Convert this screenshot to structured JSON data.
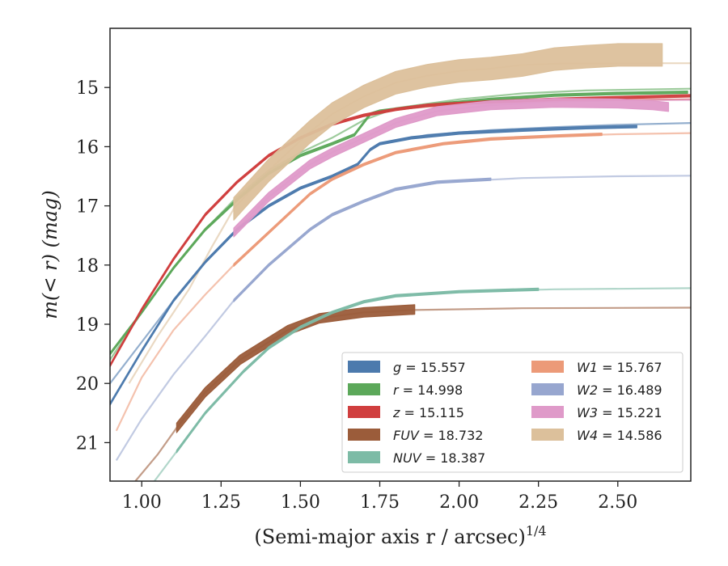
{
  "chart_data": {
    "type": "line",
    "xlabel": "(Semi-major axis r / arcsec)",
    "xlabel_power": "1/4",
    "ylabel_prefix": "m(< r) (mag)",
    "xlim": [
      0.9,
      2.73
    ],
    "ylim": [
      21.65,
      14.0
    ],
    "y_inverted": true,
    "grid": false,
    "legend_position": "lower-right",
    "xticks": [
      1.0,
      1.25,
      1.5,
      1.75,
      2.0,
      2.25,
      2.5
    ],
    "xtick_labels": [
      "1.00",
      "1.25",
      "1.50",
      "1.75",
      "2.00",
      "2.25",
      "2.50"
    ],
    "yticks": [
      15,
      16,
      17,
      18,
      19,
      20,
      21
    ],
    "ytick_labels": [
      "15",
      "16",
      "17",
      "18",
      "19",
      "20",
      "21"
    ],
    "series": [
      {
        "name": "g = 15.557",
        "label_var": "g",
        "label_val": "15.557",
        "color": "#4c7aad",
        "band": [
          [
            0.9,
            20.35
          ],
          [
            1.0,
            19.45
          ],
          [
            1.1,
            18.6
          ],
          [
            1.2,
            17.95
          ],
          [
            1.3,
            17.4
          ],
          [
            1.4,
            17.0
          ],
          [
            1.5,
            16.7
          ],
          [
            1.6,
            16.5
          ],
          [
            1.68,
            16.3
          ],
          [
            1.72,
            16.05
          ],
          [
            1.75,
            15.95
          ],
          [
            1.85,
            15.85
          ],
          [
            2.0,
            15.77
          ],
          [
            2.2,
            15.72
          ],
          [
            2.4,
            15.68
          ],
          [
            2.56,
            15.66
          ]
        ],
        "band_width": 0.04,
        "ext": [
          [
            0.9,
            20.0
          ],
          [
            1.0,
            19.3
          ],
          [
            1.1,
            18.6
          ],
          [
            1.2,
            17.95
          ],
          [
            1.3,
            17.4
          ],
          [
            1.4,
            17.0
          ],
          [
            1.5,
            16.7
          ],
          [
            1.6,
            16.5
          ],
          [
            1.68,
            16.3
          ],
          [
            1.72,
            16.05
          ],
          [
            1.75,
            15.95
          ],
          [
            1.9,
            15.8
          ],
          [
            2.1,
            15.72
          ],
          [
            2.3,
            15.67
          ],
          [
            2.5,
            15.63
          ],
          [
            2.73,
            15.6
          ]
        ]
      },
      {
        "name": "r = 14.998",
        "label_var": "r",
        "label_val": "14.998",
        "color": "#5ca85a",
        "band": [
          [
            0.9,
            19.5
          ],
          [
            1.0,
            18.8
          ],
          [
            1.1,
            18.05
          ],
          [
            1.2,
            17.4
          ],
          [
            1.3,
            16.9
          ],
          [
            1.4,
            16.45
          ],
          [
            1.5,
            16.15
          ],
          [
            1.6,
            15.95
          ],
          [
            1.67,
            15.8
          ],
          [
            1.72,
            15.45
          ],
          [
            1.75,
            15.4
          ],
          [
            1.9,
            15.3
          ],
          [
            2.1,
            15.2
          ],
          [
            2.3,
            15.13
          ],
          [
            2.5,
            15.1
          ],
          [
            2.72,
            15.08
          ]
        ],
        "band_width": 0.04,
        "ext": [
          [
            0.9,
            19.6
          ],
          [
            1.0,
            18.8
          ],
          [
            1.1,
            18.05
          ],
          [
            1.2,
            17.4
          ],
          [
            1.3,
            16.85
          ],
          [
            1.4,
            16.4
          ],
          [
            1.5,
            16.1
          ],
          [
            1.6,
            15.85
          ],
          [
            1.7,
            15.55
          ],
          [
            1.8,
            15.35
          ],
          [
            2.0,
            15.2
          ],
          [
            2.2,
            15.1
          ],
          [
            2.4,
            15.05
          ],
          [
            2.73,
            15.02
          ]
        ]
      },
      {
        "name": "z = 15.115",
        "label_var": "z",
        "label_val": "15.115",
        "color": "#d03e3e",
        "band": [
          [
            0.9,
            19.7
          ],
          [
            1.0,
            18.75
          ],
          [
            1.1,
            17.9
          ],
          [
            1.2,
            17.15
          ],
          [
            1.3,
            16.6
          ],
          [
            1.4,
            16.15
          ],
          [
            1.5,
            15.85
          ],
          [
            1.6,
            15.62
          ],
          [
            1.7,
            15.47
          ],
          [
            1.8,
            15.37
          ],
          [
            1.9,
            15.3
          ],
          [
            2.1,
            15.24
          ],
          [
            2.3,
            15.2
          ],
          [
            2.5,
            15.17
          ],
          [
            2.73,
            15.14
          ]
        ],
        "band_width": 0.04,
        "ext": [
          [
            0.9,
            19.7
          ],
          [
            1.0,
            18.75
          ],
          [
            1.1,
            17.9
          ],
          [
            1.2,
            17.15
          ],
          [
            1.3,
            16.6
          ],
          [
            1.4,
            16.15
          ],
          [
            1.5,
            15.85
          ],
          [
            1.6,
            15.62
          ],
          [
            1.7,
            15.47
          ],
          [
            1.8,
            15.37
          ],
          [
            2.0,
            15.28
          ],
          [
            2.3,
            15.22
          ],
          [
            2.73,
            15.2
          ]
        ]
      },
      {
        "name": "FUV = 18.732",
        "label_var": "FUV",
        "label_val": "18.732",
        "color": "#9b5c3a",
        "band": [
          [
            1.11,
            20.75
          ],
          [
            1.2,
            20.15
          ],
          [
            1.31,
            19.6
          ],
          [
            1.4,
            19.3
          ],
          [
            1.46,
            19.1
          ],
          [
            1.56,
            18.9
          ],
          [
            1.7,
            18.8
          ],
          [
            1.86,
            18.75
          ]
        ],
        "band_width": 0.16,
        "ext": [
          [
            0.98,
            21.65
          ],
          [
            1.05,
            21.2
          ],
          [
            1.11,
            20.75
          ],
          [
            1.2,
            20.15
          ],
          [
            1.31,
            19.6
          ],
          [
            1.4,
            19.3
          ],
          [
            1.46,
            19.1
          ],
          [
            1.56,
            18.9
          ],
          [
            1.7,
            18.8
          ],
          [
            1.86,
            18.76
          ],
          [
            2.2,
            18.73
          ],
          [
            2.73,
            18.72
          ]
        ]
      },
      {
        "name": "NUV = 18.387",
        "label_var": "NUV",
        "label_val": "18.387",
        "color": "#7dbba6",
        "band": [
          [
            1.11,
            21.15
          ],
          [
            1.2,
            20.5
          ],
          [
            1.32,
            19.8
          ],
          [
            1.4,
            19.4
          ],
          [
            1.5,
            19.05
          ],
          [
            1.6,
            18.8
          ],
          [
            1.7,
            18.62
          ],
          [
            1.8,
            18.52
          ],
          [
            2.0,
            18.45
          ],
          [
            2.25,
            18.41
          ]
        ],
        "band_width": 0.04,
        "ext": [
          [
            1.04,
            21.65
          ],
          [
            1.11,
            21.15
          ],
          [
            1.2,
            20.5
          ],
          [
            1.32,
            19.8
          ],
          [
            1.4,
            19.4
          ],
          [
            1.5,
            19.05
          ],
          [
            1.6,
            18.8
          ],
          [
            1.7,
            18.62
          ],
          [
            1.8,
            18.52
          ],
          [
            2.0,
            18.45
          ],
          [
            2.3,
            18.41
          ],
          [
            2.73,
            18.39
          ]
        ]
      },
      {
        "name": "W1 = 15.767",
        "label_var": "W1",
        "label_val": "15.767",
        "color": "#ec9a78",
        "band": [
          [
            1.29,
            18.0
          ],
          [
            1.4,
            17.45
          ],
          [
            1.53,
            16.8
          ],
          [
            1.6,
            16.55
          ],
          [
            1.7,
            16.3
          ],
          [
            1.8,
            16.1
          ],
          [
            1.95,
            15.95
          ],
          [
            2.1,
            15.87
          ],
          [
            2.3,
            15.82
          ],
          [
            2.45,
            15.79
          ]
        ],
        "band_width": 0.04,
        "ext": [
          [
            0.92,
            20.8
          ],
          [
            1.0,
            19.9
          ],
          [
            1.1,
            19.1
          ],
          [
            1.2,
            18.5
          ],
          [
            1.29,
            18.0
          ],
          [
            1.4,
            17.45
          ],
          [
            1.53,
            16.8
          ],
          [
            1.6,
            16.55
          ],
          [
            1.7,
            16.3
          ],
          [
            1.8,
            16.1
          ],
          [
            1.95,
            15.95
          ],
          [
            2.1,
            15.87
          ],
          [
            2.3,
            15.82
          ],
          [
            2.5,
            15.79
          ],
          [
            2.73,
            15.77
          ]
        ]
      },
      {
        "name": "W2 = 16.489",
        "label_var": "W2",
        "label_val": "16.489",
        "color": "#97a6cf",
        "band": [
          [
            1.29,
            18.6
          ],
          [
            1.4,
            18.0
          ],
          [
            1.53,
            17.4
          ],
          [
            1.6,
            17.15
          ],
          [
            1.7,
            16.92
          ],
          [
            1.8,
            16.72
          ],
          [
            1.93,
            16.6
          ],
          [
            2.1,
            16.55
          ]
        ],
        "band_width": 0.04,
        "ext": [
          [
            0.92,
            21.3
          ],
          [
            1.0,
            20.6
          ],
          [
            1.1,
            19.85
          ],
          [
            1.2,
            19.2
          ],
          [
            1.29,
            18.6
          ],
          [
            1.4,
            18.0
          ],
          [
            1.53,
            17.4
          ],
          [
            1.6,
            17.15
          ],
          [
            1.7,
            16.92
          ],
          [
            1.8,
            16.72
          ],
          [
            1.95,
            16.6
          ],
          [
            2.2,
            16.53
          ],
          [
            2.5,
            16.5
          ],
          [
            2.73,
            16.49
          ]
        ]
      },
      {
        "name": "W3 = 15.221",
        "label_var": "W3",
        "label_val": "15.221",
        "color": "#df9ac9",
        "band": [
          [
            1.29,
            17.45
          ],
          [
            1.4,
            16.85
          ],
          [
            1.53,
            16.3
          ],
          [
            1.6,
            16.1
          ],
          [
            1.7,
            15.85
          ],
          [
            1.8,
            15.6
          ],
          [
            1.93,
            15.4
          ],
          [
            2.1,
            15.3
          ],
          [
            2.3,
            15.26
          ],
          [
            2.5,
            15.27
          ],
          [
            2.61,
            15.3
          ],
          [
            2.66,
            15.33
          ]
        ],
        "band_width": 0.15,
        "ext": [
          [
            1.29,
            17.45
          ],
          [
            1.4,
            16.85
          ],
          [
            1.53,
            16.3
          ],
          [
            1.6,
            16.1
          ],
          [
            1.7,
            15.85
          ],
          [
            1.8,
            15.6
          ],
          [
            1.93,
            15.4
          ],
          [
            2.1,
            15.3
          ],
          [
            2.3,
            15.24
          ],
          [
            2.5,
            15.22
          ],
          [
            2.73,
            15.21
          ]
        ]
      },
      {
        "name": "W4 = 14.586",
        "label_var": "W4",
        "label_val": "14.586",
        "color": "#dcc09b",
        "band": [
          [
            1.29,
            17.05
          ],
          [
            1.4,
            16.4
          ],
          [
            1.53,
            15.75
          ],
          [
            1.6,
            15.45
          ],
          [
            1.7,
            15.15
          ],
          [
            1.8,
            14.92
          ],
          [
            1.9,
            14.8
          ],
          [
            2.0,
            14.72
          ],
          [
            2.1,
            14.68
          ],
          [
            2.2,
            14.62
          ],
          [
            2.3,
            14.52
          ],
          [
            2.4,
            14.48
          ],
          [
            2.5,
            14.45
          ],
          [
            2.64,
            14.45
          ]
        ],
        "band_width": 0.38,
        "ext": [
          [
            0.96,
            20.0
          ],
          [
            1.05,
            19.2
          ],
          [
            1.15,
            18.4
          ],
          [
            1.22,
            17.7
          ],
          [
            1.29,
            17.05
          ],
          [
            1.4,
            16.4
          ],
          [
            1.53,
            15.75
          ],
          [
            1.6,
            15.45
          ],
          [
            1.7,
            15.15
          ],
          [
            1.8,
            14.92
          ],
          [
            1.9,
            14.8
          ],
          [
            2.0,
            14.72
          ],
          [
            2.1,
            14.68
          ],
          [
            2.2,
            14.62
          ],
          [
            2.3,
            14.6
          ],
          [
            2.5,
            14.59
          ],
          [
            2.73,
            14.59
          ]
        ]
      }
    ]
  }
}
